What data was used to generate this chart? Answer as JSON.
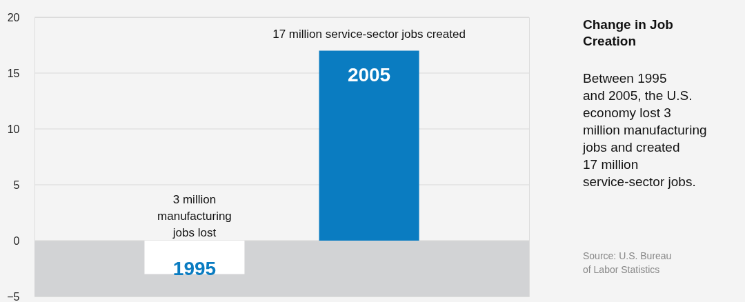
{
  "chart_data": {
    "type": "bar",
    "title": "Change in Job\nCreation",
    "categories": [
      "1995",
      "2005"
    ],
    "series": [
      {
        "values": [
          -3,
          17
        ],
        "colors": [
          "#ffffff",
          "#0a7cc1"
        ]
      }
    ],
    "ylim": [
      -5,
      20
    ],
    "yticks": [
      -5,
      0,
      5,
      10,
      15,
      20
    ],
    "grid": "y",
    "tick_labels": "y",
    "bands": [
      {
        "axis": "y",
        "from": -5,
        "to": 0,
        "color": "#d2d3d5"
      }
    ],
    "annotations": [
      "3 million\nmanufacturing\njobs lost",
      "17 million service-sector jobs created",
      "Between 1995\nand 2005, the U.S.\neconomy lost 3\nmillion manufacturing\njobs and created\n17 million\nservice-sector jobs.",
      "Source: U.S. Bureau\nof Labor Statistics"
    ]
  }
}
